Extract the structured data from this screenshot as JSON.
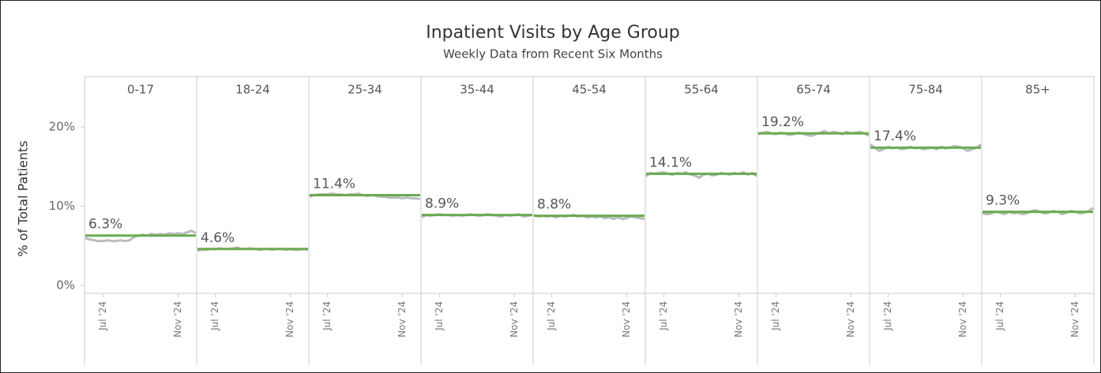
{
  "chart_data": {
    "type": "line",
    "title": "Inpatient Visits by Age Group",
    "subtitle": "Weekly Data from Recent Six Months",
    "y_label": "% of Total Patients",
    "ylim": [
      -1,
      23
    ],
    "yticks": [
      {
        "value": 0,
        "label": "0%"
      },
      {
        "value": 10,
        "label": "10%"
      },
      {
        "value": 20,
        "label": "20%"
      }
    ],
    "xlim": [
      "2024-06",
      "2024-12"
    ],
    "xticks": [
      {
        "value": "2024-07",
        "label": "Jul '24"
      },
      {
        "value": "2024-11",
        "label": "Nov '24"
      }
    ],
    "line_color": "#bbbbbb",
    "average_color": "#6aab52",
    "panels": [
      {
        "name": "0-17",
        "average": 6.3,
        "average_label": "6.3%",
        "values": [
          6.0,
          5.8,
          5.7,
          5.6,
          5.6,
          5.7,
          5.6,
          5.6,
          5.7,
          5.6,
          5.7,
          6.1,
          6.3,
          6.4,
          6.3,
          6.5,
          6.4,
          6.5,
          6.4,
          6.6,
          6.5,
          6.6,
          6.5,
          6.7,
          6.9,
          6.6
        ]
      },
      {
        "name": "18-24",
        "average": 4.6,
        "average_label": "4.6%",
        "values": [
          4.4,
          4.5,
          4.5,
          4.6,
          4.6,
          4.7,
          4.6,
          4.6,
          4.7,
          4.8,
          4.6,
          4.6,
          4.7,
          4.6,
          4.5,
          4.6,
          4.6,
          4.5,
          4.6,
          4.6,
          4.5,
          4.6,
          4.5,
          4.5,
          4.6,
          4.5
        ]
      },
      {
        "name": "25-34",
        "average": 11.4,
        "average_label": "11.4%",
        "values": [
          11.2,
          11.4,
          11.5,
          11.5,
          11.5,
          11.6,
          11.5,
          11.5,
          11.4,
          11.5,
          11.5,
          11.6,
          11.4,
          11.3,
          11.4,
          11.3,
          11.2,
          11.2,
          11.1,
          11.1,
          11.1,
          11.0,
          11.1,
          11.0,
          11.0,
          10.9
        ]
      },
      {
        "name": "35-44",
        "average": 8.9,
        "average_label": "8.9%",
        "values": [
          8.6,
          8.9,
          8.8,
          8.9,
          9.0,
          8.9,
          8.9,
          8.8,
          8.9,
          8.8,
          8.9,
          9.0,
          8.9,
          8.8,
          8.9,
          9.0,
          8.9,
          8.8,
          8.7,
          8.9,
          8.8,
          8.9,
          9.0,
          8.7,
          8.8,
          8.9
        ]
      },
      {
        "name": "45-54",
        "average": 8.8,
        "average_label": "8.8%",
        "values": [
          8.9,
          8.7,
          8.8,
          8.7,
          8.8,
          8.6,
          8.8,
          8.7,
          8.8,
          8.9,
          8.7,
          8.8,
          8.6,
          8.7,
          8.6,
          8.7,
          8.5,
          8.6,
          8.4,
          8.6,
          8.4,
          8.5,
          8.7,
          8.6,
          8.5,
          8.4
        ]
      },
      {
        "name": "55-64",
        "average": 14.1,
        "average_label": "14.1%",
        "values": [
          13.8,
          14.2,
          14.1,
          14.2,
          14.3,
          14.1,
          14.0,
          14.2,
          14.1,
          14.3,
          14.0,
          13.9,
          13.6,
          14.0,
          14.1,
          13.9,
          14.0,
          14.2,
          14.1,
          14.0,
          14.2,
          14.1,
          14.3,
          14.0,
          14.2,
          13.8
        ]
      },
      {
        "name": "65-74",
        "average": 19.2,
        "average_label": "19.2%",
        "values": [
          19.1,
          19.3,
          19.4,
          19.2,
          19.1,
          19.3,
          19.2,
          19.0,
          19.1,
          19.3,
          19.2,
          19.0,
          18.9,
          19.1,
          19.3,
          19.5,
          19.2,
          19.4,
          19.3,
          19.1,
          19.4,
          19.2,
          19.3,
          19.4,
          19.2,
          18.9
        ]
      },
      {
        "name": "75-84",
        "average": 17.4,
        "average_label": "17.4%",
        "values": [
          17.8,
          17.4,
          17.0,
          17.2,
          17.5,
          17.3,
          17.4,
          17.2,
          17.3,
          17.5,
          17.3,
          17.4,
          17.2,
          17.3,
          17.4,
          17.2,
          17.5,
          17.3,
          17.4,
          17.6,
          17.5,
          17.3,
          17.0,
          17.2,
          17.4,
          17.8
        ]
      },
      {
        "name": "85+",
        "average": 9.3,
        "average_label": "9.3%",
        "values": [
          9.1,
          9.0,
          9.1,
          9.3,
          9.2,
          9.0,
          9.3,
          9.1,
          9.2,
          9.0,
          9.1,
          9.4,
          9.5,
          9.3,
          9.1,
          9.2,
          9.4,
          9.3,
          9.0,
          9.2,
          9.4,
          9.3,
          9.1,
          9.2,
          9.4,
          9.8
        ]
      }
    ]
  }
}
